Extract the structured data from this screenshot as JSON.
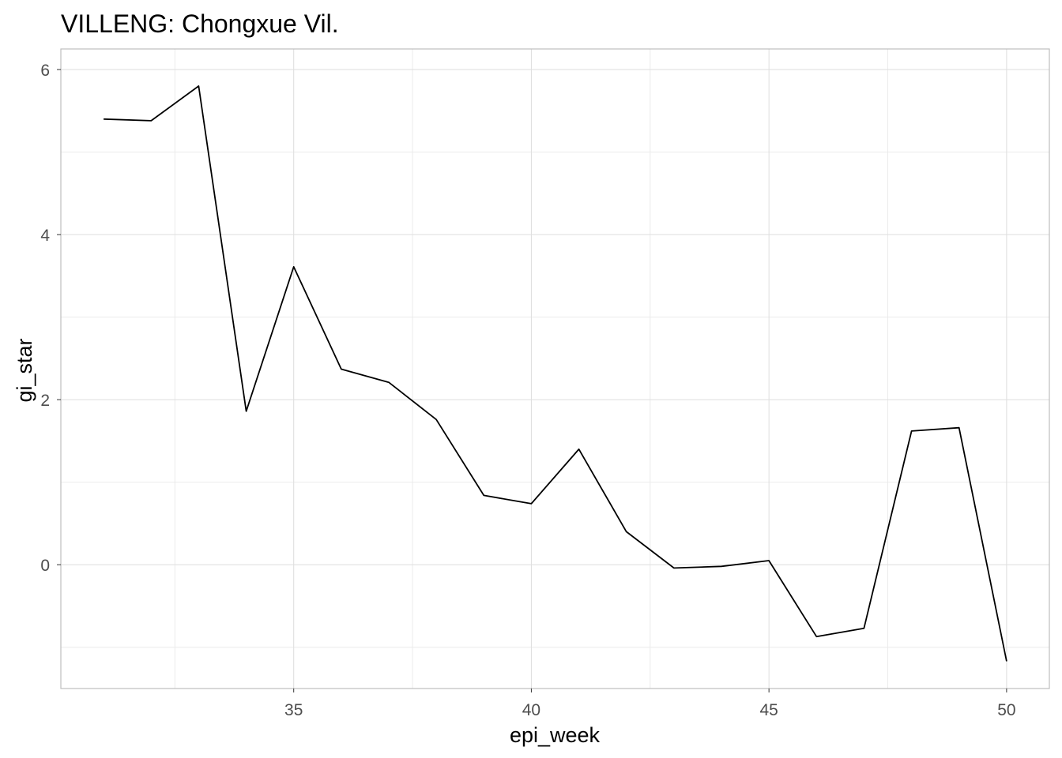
{
  "chart_data": {
    "type": "line",
    "title": "VILLENG: Chongxue Vil.",
    "xlabel": "epi_week",
    "ylabel": "gi_star",
    "xlim": [
      30.1,
      50.9
    ],
    "ylim": [
      -1.5,
      6.25
    ],
    "x_ticks": [
      35,
      40,
      45,
      50
    ],
    "y_ticks": [
      0,
      2,
      4,
      6
    ],
    "x_minor": [
      32.5,
      37.5,
      42.5,
      47.5
    ],
    "y_minor": [
      -1,
      1,
      3,
      5
    ],
    "grid": true,
    "legend": "none",
    "colors": {
      "line": "#000000",
      "grid_major": "#dedede",
      "grid_minor": "#ebebeb"
    },
    "series": [
      {
        "x": [
          31,
          32,
          33,
          34,
          35,
          36,
          37,
          38,
          39,
          40,
          41,
          42,
          43,
          44,
          45,
          46,
          47,
          48,
          49,
          50
        ],
        "y": [
          5.4,
          5.38,
          5.8,
          1.86,
          3.61,
          2.37,
          2.21,
          1.76,
          0.84,
          0.74,
          1.4,
          0.4,
          -0.04,
          -0.02,
          0.05,
          -0.87,
          -0.77,
          1.62,
          1.66,
          -1.17
        ]
      }
    ]
  }
}
